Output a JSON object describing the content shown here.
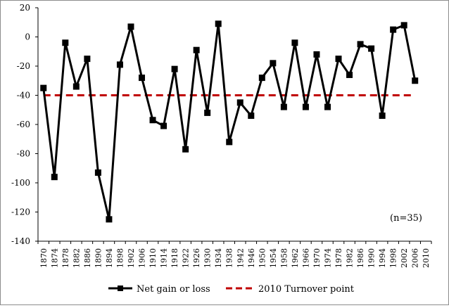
{
  "chart_data": {
    "type": "line",
    "title": "",
    "xlabel": "",
    "ylabel": "",
    "ylim": [
      -140,
      20
    ],
    "yticks": [
      20,
      0,
      -20,
      -40,
      -60,
      -80,
      -100,
      -120,
      -140
    ],
    "x": [
      1870,
      1874,
      1878,
      1882,
      1886,
      1890,
      1894,
      1898,
      1902,
      1906,
      1910,
      1914,
      1918,
      1922,
      1926,
      1930,
      1934,
      1938,
      1942,
      1946,
      1950,
      1954,
      1958,
      1962,
      1966,
      1970,
      1974,
      1978,
      1982,
      1986,
      1990,
      1994,
      1998,
      2002,
      2006,
      2010
    ],
    "series": [
      {
        "name": "Net gain or loss",
        "color": "#000000",
        "marker": "square",
        "values": [
          -35,
          -96,
          -4,
          -34,
          -15,
          -93,
          -125,
          -19,
          7,
          -28,
          -57,
          -61,
          -22,
          -77,
          -9,
          -52,
          9,
          -72,
          -45,
          -54,
          -28,
          -18,
          -48,
          -4,
          -48,
          -12,
          -48,
          -15,
          -26,
          -5,
          -8,
          -54,
          5,
          8,
          -30,
          null
        ]
      },
      {
        "name": "2010 Turnover point",
        "color": "#c00000",
        "style": "dashed",
        "values": [
          -40,
          -40,
          -40,
          -40,
          -40,
          -40,
          -40,
          -40,
          -40,
          -40,
          -40,
          -40,
          -40,
          -40,
          -40,
          -40,
          -40,
          -40,
          -40,
          -40,
          -40,
          -40,
          -40,
          -40,
          -40,
          -40,
          -40,
          -40,
          -40,
          -40,
          -40,
          -40,
          -40,
          -40,
          -40,
          null
        ]
      }
    ],
    "annotation": "(n=35)",
    "grid": false,
    "legend": "bottom"
  }
}
